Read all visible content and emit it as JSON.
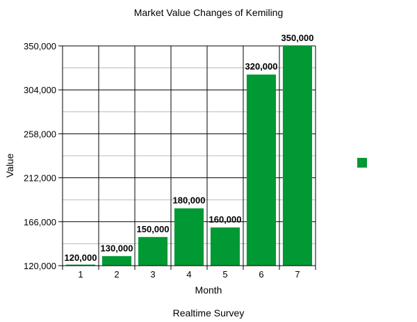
{
  "chart_data": {
    "type": "bar",
    "title": "Market Value Changes of Kemiling",
    "xlabel": "Month",
    "ylabel": "Value",
    "categories": [
      "1",
      "2",
      "3",
      "4",
      "5",
      "6",
      "7"
    ],
    "values": [
      120000,
      130000,
      150000,
      180000,
      160000,
      320000,
      350000
    ],
    "data_labels": [
      "120,000",
      "130,000",
      "150,000",
      "180,000",
      "160,000",
      "320,000",
      "350,000"
    ],
    "ylim": [
      120000,
      350000
    ],
    "yticks": [
      120000,
      166000,
      212000,
      258000,
      304000,
      350000
    ],
    "ytick_labels": [
      "120,000",
      "166,000",
      "212,000",
      "258,000",
      "304,000",
      "350,000"
    ],
    "grid": true,
    "legend_position": "right",
    "colors": {
      "bar": "#009933"
    },
    "footer": "Realtime Survey"
  }
}
